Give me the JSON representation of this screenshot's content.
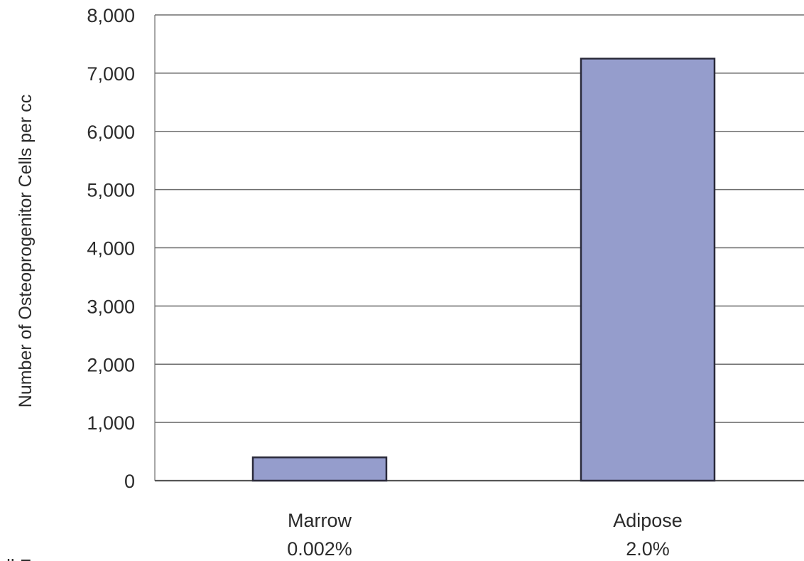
{
  "chart_data": {
    "type": "bar",
    "categories": [
      "Marrow",
      "Adipose"
    ],
    "category_sublabels": [
      "0.002%",
      "2.0%"
    ],
    "values": [
      400,
      7250
    ],
    "ylabel": "Number of Osteoprogenitor Cells per cc",
    "xlabel": "",
    "ylim": [
      0,
      8000
    ],
    "yticks": [
      "0",
      "1,000",
      "2,000",
      "3,000",
      "4,000",
      "5,000",
      "6,000",
      "7,000",
      "8,000"
    ],
    "grid": true,
    "legend": "none",
    "bar_color": "#959dcc",
    "bar_edge_color": "#2a2a3a",
    "footnote": "Stem Cell Frequency"
  }
}
